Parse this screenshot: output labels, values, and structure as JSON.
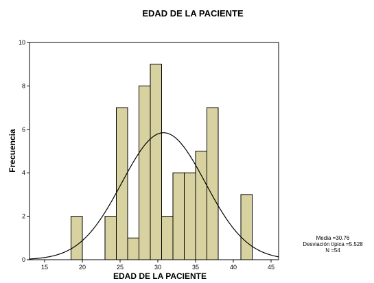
{
  "chart_data": {
    "type": "bar",
    "title": "EDAD DE LA PACIENTE",
    "xlabel": "EDAD DE LA PACIENTE",
    "ylabel": "Frecuencia",
    "xlim": [
      13,
      46
    ],
    "ylim": [
      0,
      10
    ],
    "x_ticks": [
      15,
      20,
      25,
      30,
      35,
      40,
      45
    ],
    "y_ticks": [
      0,
      2,
      4,
      6,
      8,
      10
    ],
    "bin_width": 1.5,
    "bins": [
      {
        "start": 18.5,
        "count": 2
      },
      {
        "start": 20.0,
        "count": 0
      },
      {
        "start": 21.5,
        "count": 0
      },
      {
        "start": 23.0,
        "count": 2
      },
      {
        "start": 24.5,
        "count": 7
      },
      {
        "start": 26.0,
        "count": 1
      },
      {
        "start": 27.5,
        "count": 8
      },
      {
        "start": 29.0,
        "count": 9
      },
      {
        "start": 30.5,
        "count": 2
      },
      {
        "start": 32.0,
        "count": 4
      },
      {
        "start": 33.5,
        "count": 4
      },
      {
        "start": 35.0,
        "count": 5
      },
      {
        "start": 36.5,
        "count": 7
      },
      {
        "start": 38.0,
        "count": 0
      },
      {
        "start": 39.5,
        "count": 0
      },
      {
        "start": 41.0,
        "count": 3
      }
    ],
    "normal_curve": {
      "mean": 30.76,
      "sd": 5.528,
      "n": 54
    },
    "stats": [
      "Media =30.76",
      "Desviación típica =5.528",
      "N =54"
    ],
    "bar_color": "#d7d2a0",
    "bar_border": "#000000",
    "grid": false
  }
}
